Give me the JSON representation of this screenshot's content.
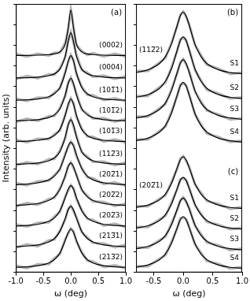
{
  "chart_data": [
    {
      "type": "line",
      "x_label": "ω (deg)",
      "y_label": "Intensity (arb. units)",
      "x": [
        -1,
        -0.8,
        -0.6,
        -0.4,
        -0.3,
        -0.2,
        -0.1,
        -0.05,
        0,
        0.05,
        0.1,
        0.2,
        0.3,
        0.4,
        0.6,
        0.8,
        1
      ],
      "xlim": [
        -1,
        1
      ],
      "xticks": [
        {
          "value": -1,
          "label": "-1.0"
        },
        -0.5,
        {
          "value": 0,
          "label": "0.0"
        },
        0.5,
        {
          "value": 1,
          "label": "1.0"
        }
      ],
      "ylim": [
        0,
        13
      ],
      "yticks": [
        0,
        1,
        2,
        3,
        4,
        5,
        6,
        7,
        8,
        9,
        10,
        11,
        12,
        13
      ],
      "tick_labels": "x",
      "grid": false,
      "groups": [
        {
          "annotation": "(a)",
          "series": [
            {
              "name": "(0002)",
              "color": "#000000",
              "values": [
                10.51,
                10.51,
                10.52,
                10.55,
                10.58,
                10.68,
                11.08,
                11.8,
                12.7,
                11.8,
                11.08,
                10.68,
                10.58,
                10.55,
                10.52,
                10.51,
                10.51
              ],
              "measured": [
                10.59,
                10.45,
                10.59,
                10.5,
                10.64,
                10.64,
                11.13,
                11.74,
                12.73,
                11.85,
                11.01,
                10.72,
                10.53,
                10.62,
                10.46,
                10.59,
                10.46
              ]
            },
            {
              "name": "(0004)",
              "color": "#000000",
              "values": [
                9.42,
                9.43,
                9.46,
                9.53,
                9.62,
                9.84,
                10.5,
                11.16,
                11.6,
                11.16,
                10.5,
                9.84,
                9.62,
                9.53,
                9.46,
                9.43,
                9.42
              ],
              "measured": [
                9.37,
                9.51,
                9.4,
                9.6,
                9.57,
                9.88,
                10.43,
                11.21,
                11.63,
                11.1,
                10.55,
                9.8,
                9.68,
                9.48,
                9.53,
                9.37,
                9.5
              ]
            },
            {
              "name": "(101̅1)",
              "color": "#000000",
              "values": [
                8.34,
                8.36,
                8.4,
                8.51,
                8.65,
                8.95,
                9.68,
                10.22,
                10.5,
                10.22,
                9.68,
                8.95,
                8.65,
                8.51,
                8.4,
                8.36,
                8.34
              ],
              "measured": [
                8.42,
                8.3,
                8.47,
                8.46,
                8.71,
                8.91,
                9.73,
                10.16,
                10.53,
                10.27,
                9.61,
                8.99,
                8.6,
                8.58,
                8.34,
                8.44,
                8.29
              ]
            },
            {
              "name": "(101̅2)",
              "color": "#000000",
              "values": [
                7.34,
                7.36,
                7.4,
                7.5,
                7.63,
                7.92,
                8.62,
                9.13,
                9.4,
                9.13,
                8.62,
                7.92,
                7.63,
                7.5,
                7.4,
                7.36,
                7.34
              ],
              "measured": [
                7.29,
                7.44,
                7.34,
                7.57,
                7.58,
                7.96,
                8.55,
                9.18,
                9.43,
                9.07,
                8.67,
                7.88,
                7.69,
                7.45,
                7.47,
                7.3,
                7.42
              ]
            },
            {
              "name": "(101̅3)",
              "color": "#000000",
              "values": [
                6.34,
                6.36,
                6.4,
                6.5,
                6.63,
                6.92,
                7.62,
                8.13,
                8.4,
                8.13,
                7.62,
                6.92,
                6.63,
                6.5,
                6.4,
                6.36,
                6.34
              ],
              "measured": [
                6.42,
                6.3,
                6.47,
                6.45,
                6.69,
                6.88,
                7.67,
                8.07,
                8.43,
                8.18,
                7.55,
                6.96,
                6.58,
                6.57,
                6.34,
                6.44,
                6.29
              ]
            },
            {
              "name": "(112̅3)",
              "color": "#000000",
              "values": [
                5.24,
                5.26,
                5.3,
                5.41,
                5.55,
                5.85,
                6.58,
                7.12,
                7.4,
                7.12,
                6.58,
                5.85,
                5.55,
                5.41,
                5.3,
                5.26,
                5.24
              ],
              "measured": [
                5.19,
                5.34,
                5.24,
                5.48,
                5.5,
                5.89,
                6.51,
                7.17,
                7.43,
                7.06,
                6.63,
                5.81,
                5.61,
                5.36,
                5.37,
                5.2,
                5.32
              ]
            },
            {
              "name": "(202̅1)",
              "color": "#000000",
              "values": [
                4.25,
                4.28,
                4.34,
                4.49,
                4.66,
                5.02,
                5.71,
                6.11,
                6.3,
                6.11,
                5.71,
                5.02,
                4.66,
                4.49,
                4.34,
                4.28,
                4.25
              ],
              "measured": [
                4.33,
                4.22,
                4.41,
                4.44,
                4.72,
                4.98,
                5.76,
                6.05,
                6.33,
                6.16,
                5.64,
                5.06,
                4.61,
                4.56,
                4.28,
                4.36,
                4.2
              ]
            },
            {
              "name": "(202̅2)",
              "color": "#000000",
              "values": [
                3.25,
                3.28,
                3.34,
                3.49,
                3.66,
                4.02,
                4.71,
                5.11,
                5.3,
                5.11,
                4.71,
                4.02,
                3.66,
                3.49,
                3.34,
                3.28,
                3.25
              ],
              "measured": [
                3.2,
                3.36,
                3.28,
                3.56,
                3.61,
                4.06,
                4.64,
                5.16,
                5.33,
                5.05,
                4.76,
                3.98,
                3.72,
                3.44,
                3.41,
                3.22,
                3.33
              ]
            },
            {
              "name": "(202̅3)",
              "color": "#000000",
              "values": [
                2.25,
                2.28,
                2.33,
                2.48,
                2.64,
                2.98,
                3.64,
                4.02,
                4.2,
                4.02,
                3.64,
                2.98,
                2.64,
                2.48,
                2.33,
                2.28,
                2.25
              ],
              "measured": [
                2.33,
                2.22,
                2.4,
                2.43,
                2.7,
                2.94,
                3.69,
                3.96,
                4.23,
                4.07,
                3.57,
                3.02,
                2.59,
                2.55,
                2.27,
                2.36,
                2.2
              ]
            },
            {
              "name": "(213̅1)",
              "color": "#000000",
              "values": [
                1.25,
                1.28,
                1.33,
                1.48,
                1.64,
                1.98,
                2.64,
                3.02,
                3.2,
                3.02,
                2.64,
                1.98,
                1.64,
                1.48,
                1.33,
                1.28,
                1.25
              ],
              "measured": [
                1.2,
                1.36,
                1.27,
                1.55,
                1.59,
                2.02,
                2.57,
                3.07,
                3.23,
                2.96,
                2.69,
                1.94,
                1.7,
                1.43,
                1.4,
                1.22,
                1.33
              ]
            },
            {
              "name": "(213̅2)",
              "color": "#000000",
              "values": [
                0.25,
                0.27,
                0.33,
                0.46,
                0.62,
                0.94,
                1.57,
                1.93,
                2.1,
                1.93,
                1.57,
                0.94,
                0.62,
                0.46,
                0.33,
                0.27,
                0.25
              ],
              "measured": [
                0.33,
                0.21,
                0.4,
                0.41,
                0.68,
                0.9,
                1.62,
                1.87,
                2.13,
                1.98,
                1.5,
                0.98,
                0.57,
                0.53,
                0.27,
                0.35,
                0.2
              ]
            }
          ]
        }
      ]
    },
    {
      "type": "line",
      "x_label": "ω (deg)",
      "x": [
        -0.8,
        -0.6,
        -0.4,
        -0.3,
        -0.2,
        -0.1,
        -0.05,
        0,
        0.05,
        0.1,
        0.2,
        0.3,
        0.4,
        0.6,
        0.8,
        1
      ],
      "xlim": [
        -0.8,
        1
      ],
      "xticks": [
        -0.5,
        {
          "value": 0,
          "label": "0.0"
        },
        0.5,
        {
          "value": 1,
          "label": "1.0"
        }
      ],
      "ylim": [
        0,
        13
      ],
      "yticks": [
        0,
        1,
        2,
        3,
        4,
        5,
        6,
        7,
        8,
        9,
        10,
        11,
        12,
        13
      ],
      "tick_labels": "x",
      "grid": false,
      "groups": [
        {
          "annotation": "(b)",
          "label": "(112̅2)",
          "series": [
            {
              "name": "S1",
              "color": "#000000",
              "values": [
                9.68,
                9.81,
                10.12,
                10.46,
                11.05,
                11.98,
                12.42,
                12.6,
                12.42,
                11.98,
                11.05,
                10.46,
                10.12,
                9.81,
                9.68,
                9.62
              ],
              "measured": [
                9.75,
                9.75,
                10.17,
                10.39,
                11.11,
                11.93,
                12.46,
                12.63,
                12.37,
                12.04,
                11.01,
                10.53,
                10.06,
                9.86,
                9.61,
                9.68
              ]
            },
            {
              "name": "S2",
              "color": "#000000",
              "values": [
                8.48,
                8.61,
                8.92,
                9.26,
                9.85,
                10.78,
                11.22,
                11.4,
                11.22,
                10.78,
                9.85,
                9.26,
                8.92,
                8.61,
                8.48,
                8.42
              ],
              "measured": [
                8.54,
                8.54,
                8.97,
                9.2,
                9.92,
                10.74,
                11.28,
                11.35,
                11.25,
                10.82,
                9.8,
                9.32,
                8.85,
                8.66,
                8.42,
                8.49
              ]
            },
            {
              "name": "S3",
              "color": "#000000",
              "values": [
                7.48,
                7.6,
                7.9,
                8.22,
                8.8,
                9.7,
                10.12,
                10.3,
                10.12,
                9.7,
                8.8,
                8.22,
                7.9,
                7.6,
                7.48,
                7.41
              ],
              "measured": [
                7.55,
                7.54,
                7.95,
                8.15,
                8.86,
                9.65,
                10.16,
                10.33,
                10.07,
                9.76,
                8.76,
                8.29,
                7.84,
                7.65,
                7.41,
                7.47
              ]
            },
            {
              "name": "S4",
              "color": "#000000",
              "values": [
                6.38,
                6.5,
                6.8,
                7.12,
                7.7,
                8.6,
                9.02,
                9.2,
                9.02,
                8.6,
                7.7,
                7.12,
                6.8,
                6.5,
                6.38,
                6.31
              ],
              "measured": [
                6.44,
                6.43,
                6.85,
                7.06,
                7.77,
                8.56,
                9.08,
                9.15,
                9.05,
                8.64,
                7.65,
                7.18,
                6.73,
                6.55,
                6.32,
                6.38
              ]
            }
          ]
        },
        {
          "annotation": "(c)",
          "label": "(202̅1)",
          "series": [
            {
              "name": "S1",
              "color": "#000000",
              "values": [
                3.15,
                3.26,
                3.52,
                3.8,
                4.3,
                5.08,
                5.45,
                5.6,
                5.45,
                5.08,
                4.3,
                3.8,
                3.52,
                3.26,
                3.15,
                3.1
              ],
              "measured": [
                3.22,
                3.2,
                3.57,
                3.73,
                4.36,
                5.03,
                5.49,
                5.63,
                5.4,
                5.14,
                4.26,
                3.87,
                3.46,
                3.31,
                3.08,
                3.16
              ]
            },
            {
              "name": "S2",
              "color": "#000000",
              "values": [
                2.15,
                2.26,
                2.52,
                2.8,
                3.3,
                4.08,
                4.45,
                4.6,
                4.45,
                4.08,
                3.3,
                2.8,
                2.52,
                2.26,
                2.15,
                2.1
              ],
              "measured": [
                2.21,
                2.19,
                2.57,
                2.74,
                3.37,
                4.04,
                4.51,
                4.55,
                4.48,
                4.12,
                3.25,
                2.86,
                2.45,
                2.31,
                2.09,
                2.17
              ]
            },
            {
              "name": "S3",
              "color": "#000000",
              "values": [
                1.15,
                1.26,
                1.52,
                1.8,
                2.3,
                3.08,
                3.45,
                3.6,
                3.45,
                3.08,
                2.3,
                1.8,
                1.52,
                1.26,
                1.15,
                1.1
              ],
              "measured": [
                1.22,
                1.2,
                1.57,
                1.73,
                2.36,
                3.03,
                3.49,
                3.63,
                3.4,
                3.14,
                2.26,
                1.87,
                1.46,
                1.31,
                1.08,
                1.16
              ]
            },
            {
              "name": "S4",
              "color": "#000000",
              "values": [
                0.25,
                0.36,
                0.62,
                0.9,
                1.4,
                2.18,
                2.55,
                2.7,
                2.55,
                2.18,
                1.4,
                0.9,
                0.62,
                0.36,
                0.25,
                0.2
              ],
              "measured": [
                0.31,
                0.29,
                0.67,
                0.84,
                1.47,
                2.14,
                2.61,
                2.65,
                2.58,
                2.22,
                1.35,
                0.96,
                0.55,
                0.41,
                0.19,
                0.27
              ]
            }
          ]
        }
      ]
    }
  ]
}
